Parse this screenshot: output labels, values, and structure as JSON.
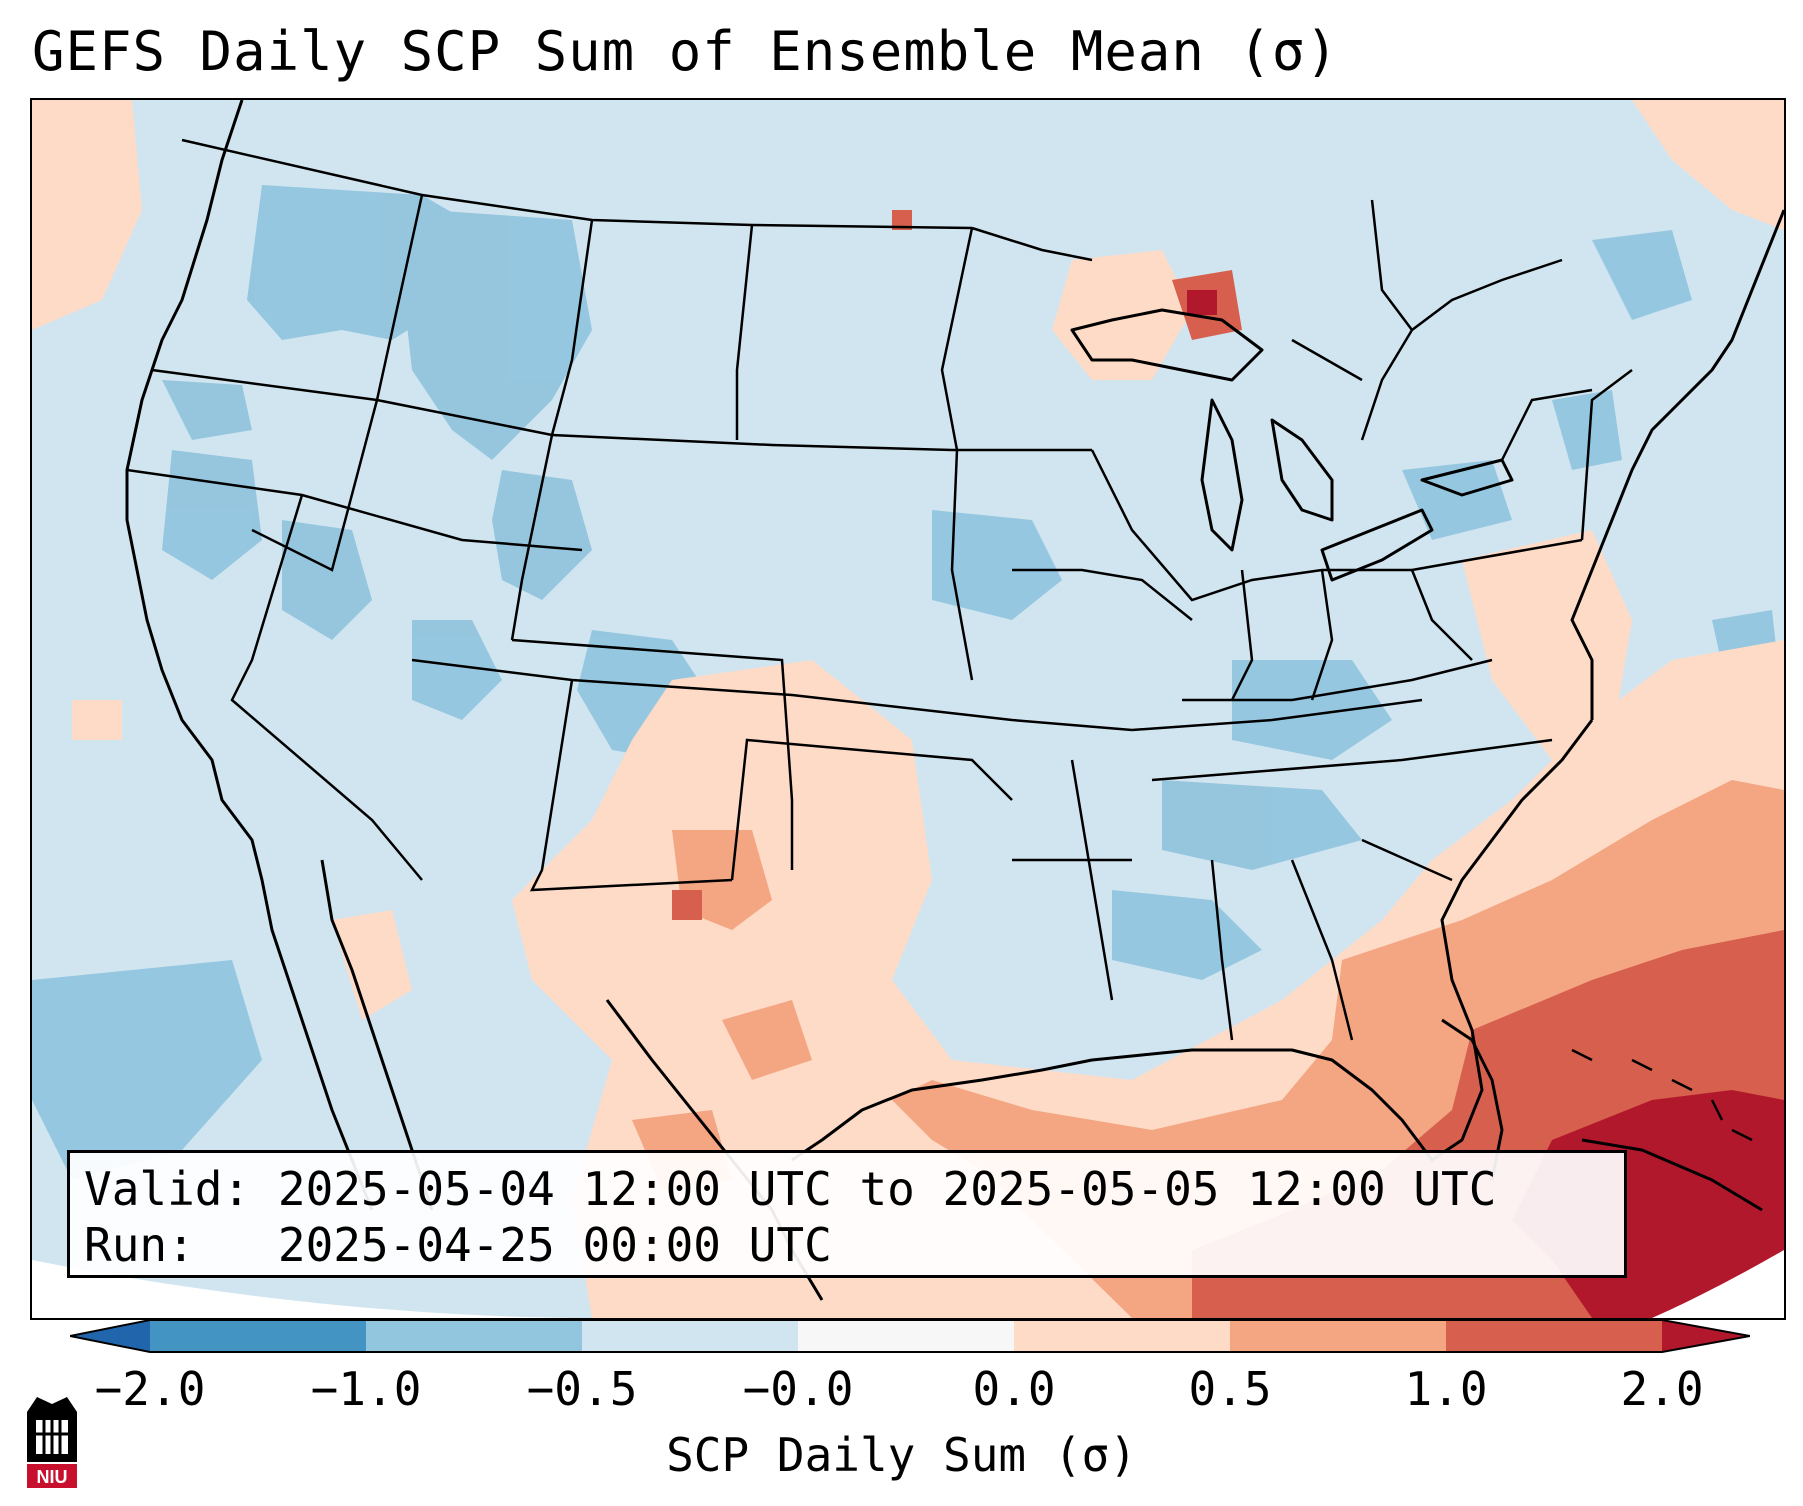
{
  "title": "GEFS Daily SCP Sum of Ensemble Mean (σ)",
  "info": {
    "valid_label": "Valid:",
    "valid_value": "2025-05-04 12:00 UTC to 2025-05-05 12:00 UTC",
    "run_label": "Run:",
    "run_value": "2025-04-25 00:00 UTC"
  },
  "colorbar": {
    "label": "SCP Daily Sum (σ)",
    "ticks": [
      "−2.0",
      "−1.0",
      "−0.5",
      "−0.0",
      "0.0",
      "0.5",
      "1.0",
      "2.0"
    ],
    "bins": [
      {
        "range": "< -2.0",
        "color": "#2166ac"
      },
      {
        "range": "-2.0 to -1.0",
        "color": "#4393c3"
      },
      {
        "range": "-1.0 to -0.5",
        "color": "#92c5de"
      },
      {
        "range": "-0.5 to -0.0",
        "color": "#d1e5f0"
      },
      {
        "range": "-0.0 to 0.0",
        "color": "#f7f7f7"
      },
      {
        "range": "0.0 to 0.5",
        "color": "#fddbc7"
      },
      {
        "range": "0.5 to 1.0",
        "color": "#f4a582"
      },
      {
        "range": "1.0 to 2.0",
        "color": "#d6604d"
      },
      {
        "range": "> 2.0",
        "color": "#b2182b"
      }
    ]
  },
  "logo": {
    "text": "NIU",
    "name": "niu-logo"
  },
  "colors": {
    "background": "#d1e5f0",
    "border": "#000000"
  }
}
